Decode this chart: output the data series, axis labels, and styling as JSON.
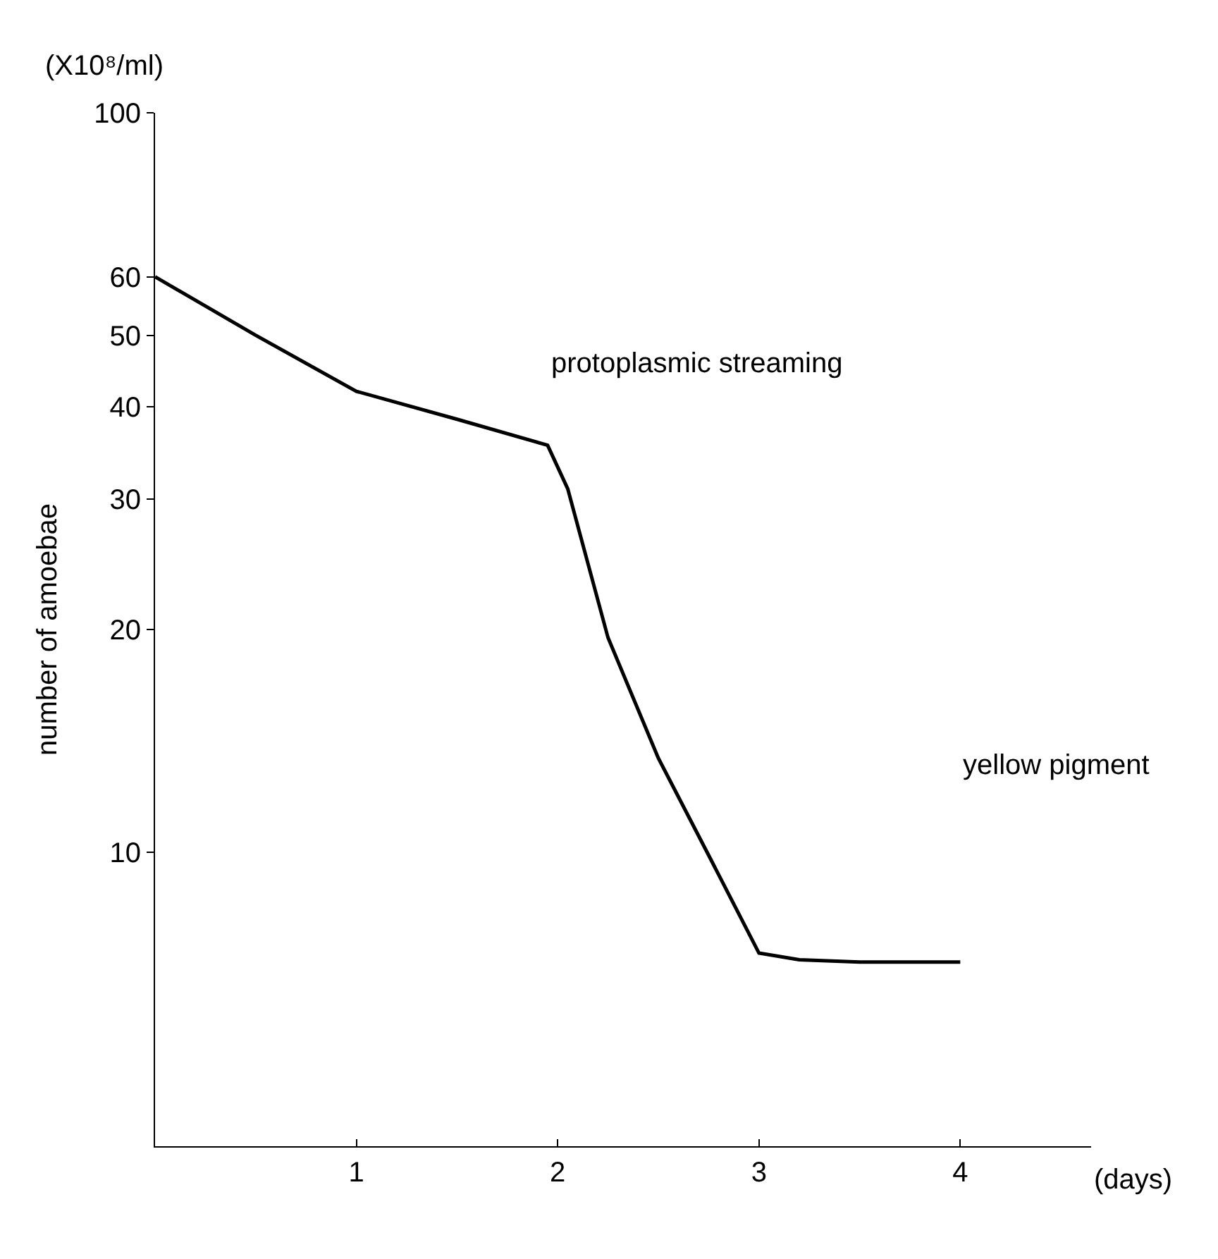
{
  "chart_data": {
    "type": "line",
    "ylabel": "number of amoebae",
    "xlabel": "(days)",
    "x": [
      0,
      0.5,
      1,
      1.5,
      1.95,
      2.05,
      2.25,
      2.5,
      2.75,
      3,
      3.2,
      3.5,
      4
    ],
    "series": [
      {
        "color": "#000000",
        "values": [
          60,
          50,
          42,
          38.5,
          35.5,
          31,
          19.5,
          13.4,
          9.9,
          7.3,
          7.15,
          7.1,
          7.1
        ]
      }
    ],
    "log": "y",
    "ylim": [
      4,
      100
    ],
    "yticks": [
      10,
      20,
      30,
      40,
      50,
      60,
      100
    ],
    "xlim": [
      0,
      4.65
    ],
    "xticks": [
      1,
      2,
      3,
      4
    ],
    "legend": false,
    "marker": "none",
    "line_style": "solid",
    "annotations": [
      "(X10⁸/ml)",
      "protoplasmic streaming",
      "yellow pigment"
    ]
  }
}
